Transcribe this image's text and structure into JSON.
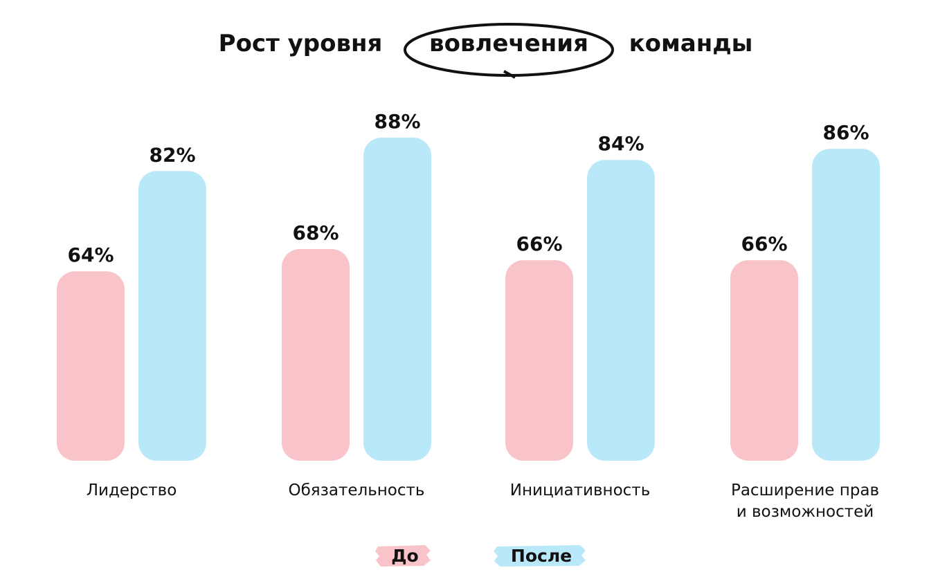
{
  "title": {
    "before": "Рост уровня",
    "highlight": "вовлечения",
    "after": "команды"
  },
  "colors": {
    "before": "#f9c4c9",
    "after": "#b9e8f8",
    "text": "#111111"
  },
  "legend": {
    "before_label": "До",
    "after_label": "После"
  },
  "chart_data": {
    "type": "bar",
    "categories": [
      [
        "Лидерство"
      ],
      [
        "Обязательность"
      ],
      [
        "Инициативность"
      ],
      [
        "Расширение прав",
        "и возможностей"
      ]
    ],
    "series": [
      {
        "name": "До",
        "values": [
          64,
          68,
          66,
          66
        ],
        "labels": [
          "64%",
          "68%",
          "66%",
          "66%"
        ]
      },
      {
        "name": "После",
        "values": [
          82,
          88,
          84,
          86
        ],
        "labels": [
          "82%",
          "88%",
          "84%",
          "86%"
        ]
      }
    ],
    "ylim": [
      30,
      88
    ],
    "grid": false,
    "legend_position": "bottom-center"
  }
}
